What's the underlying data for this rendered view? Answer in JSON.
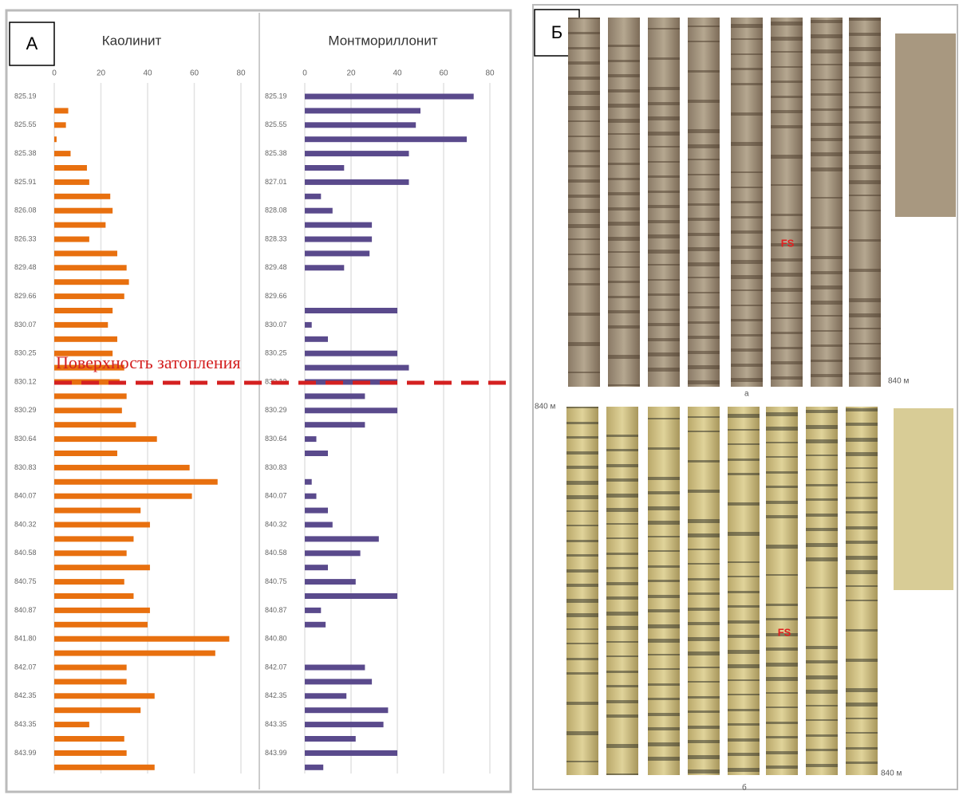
{
  "panels": {
    "a": "А",
    "b": "Б"
  },
  "annotation": "Поверхность затопления",
  "chart_data": [
    {
      "type": "bar",
      "orientation": "horizontal",
      "title": "Каолинит",
      "color": "#e8700f",
      "xlim": [
        0,
        80
      ],
      "xticks": [
        0,
        20,
        40,
        60,
        80
      ],
      "grid": true,
      "categories": [
        "825.19",
        null,
        "825.55",
        null,
        "825.38",
        null,
        "825.91",
        null,
        "826.08",
        null,
        "826.33",
        null,
        "829.48",
        null,
        "829.66",
        null,
        "830.07",
        null,
        "830.25",
        null,
        "830.12",
        null,
        "830.29",
        null,
        "830.64",
        null,
        "830.83",
        null,
        "840.07",
        null,
        "840.32",
        null,
        "840.58",
        null,
        "840.75",
        null,
        "840.87",
        null,
        "841.80",
        null,
        "842.07",
        null,
        "842.35",
        null,
        "843.35",
        null,
        "843.99",
        null
      ],
      "values": [
        0,
        6,
        5,
        1,
        7,
        14,
        15,
        24,
        25,
        22,
        15,
        27,
        31,
        32,
        30,
        25,
        23,
        27,
        25,
        30,
        28,
        31,
        29,
        35,
        44,
        27,
        58,
        70,
        59,
        37,
        41,
        34,
        31,
        41,
        30,
        34,
        41,
        40,
        75,
        69,
        31,
        31,
        43,
        37,
        15,
        30,
        31,
        43
      ]
    },
    {
      "type": "bar",
      "orientation": "horizontal",
      "title": "Монтмориллонит",
      "color": "#5a4a8c",
      "xlim": [
        0,
        80
      ],
      "xticks": [
        0,
        20,
        40,
        60,
        80
      ],
      "grid": true,
      "categories": [
        "825.19",
        null,
        "825.55",
        null,
        "825.38",
        null,
        "827.01",
        null,
        "828.08",
        null,
        "828.33",
        null,
        "829.48",
        null,
        "829.66",
        null,
        "830.07",
        null,
        "830.25",
        null,
        "830.12",
        null,
        "830.29",
        null,
        "830.64",
        null,
        "830.83",
        null,
        "840.07",
        null,
        "840.32",
        null,
        "840.58",
        null,
        "840.75",
        null,
        "840.87",
        null,
        "840.80",
        null,
        "842.07",
        null,
        "842.35",
        null,
        "843.35",
        null,
        "843.99",
        null
      ],
      "values": [
        73,
        50,
        48,
        70,
        45,
        17,
        45,
        7,
        12,
        29,
        29,
        28,
        17,
        0,
        0,
        40,
        3,
        10,
        40,
        45,
        40,
        26,
        40,
        26,
        5,
        10,
        0,
        3,
        5,
        10,
        12,
        32,
        24,
        10,
        22,
        40,
        7,
        9,
        0,
        0,
        26,
        29,
        18,
        36,
        34,
        22,
        40,
        8
      ]
    }
  ],
  "photos": {
    "labels": [
      "FS",
      "FS",
      "840 м",
      "840 м",
      "840 м",
      "а",
      "б"
    ]
  }
}
